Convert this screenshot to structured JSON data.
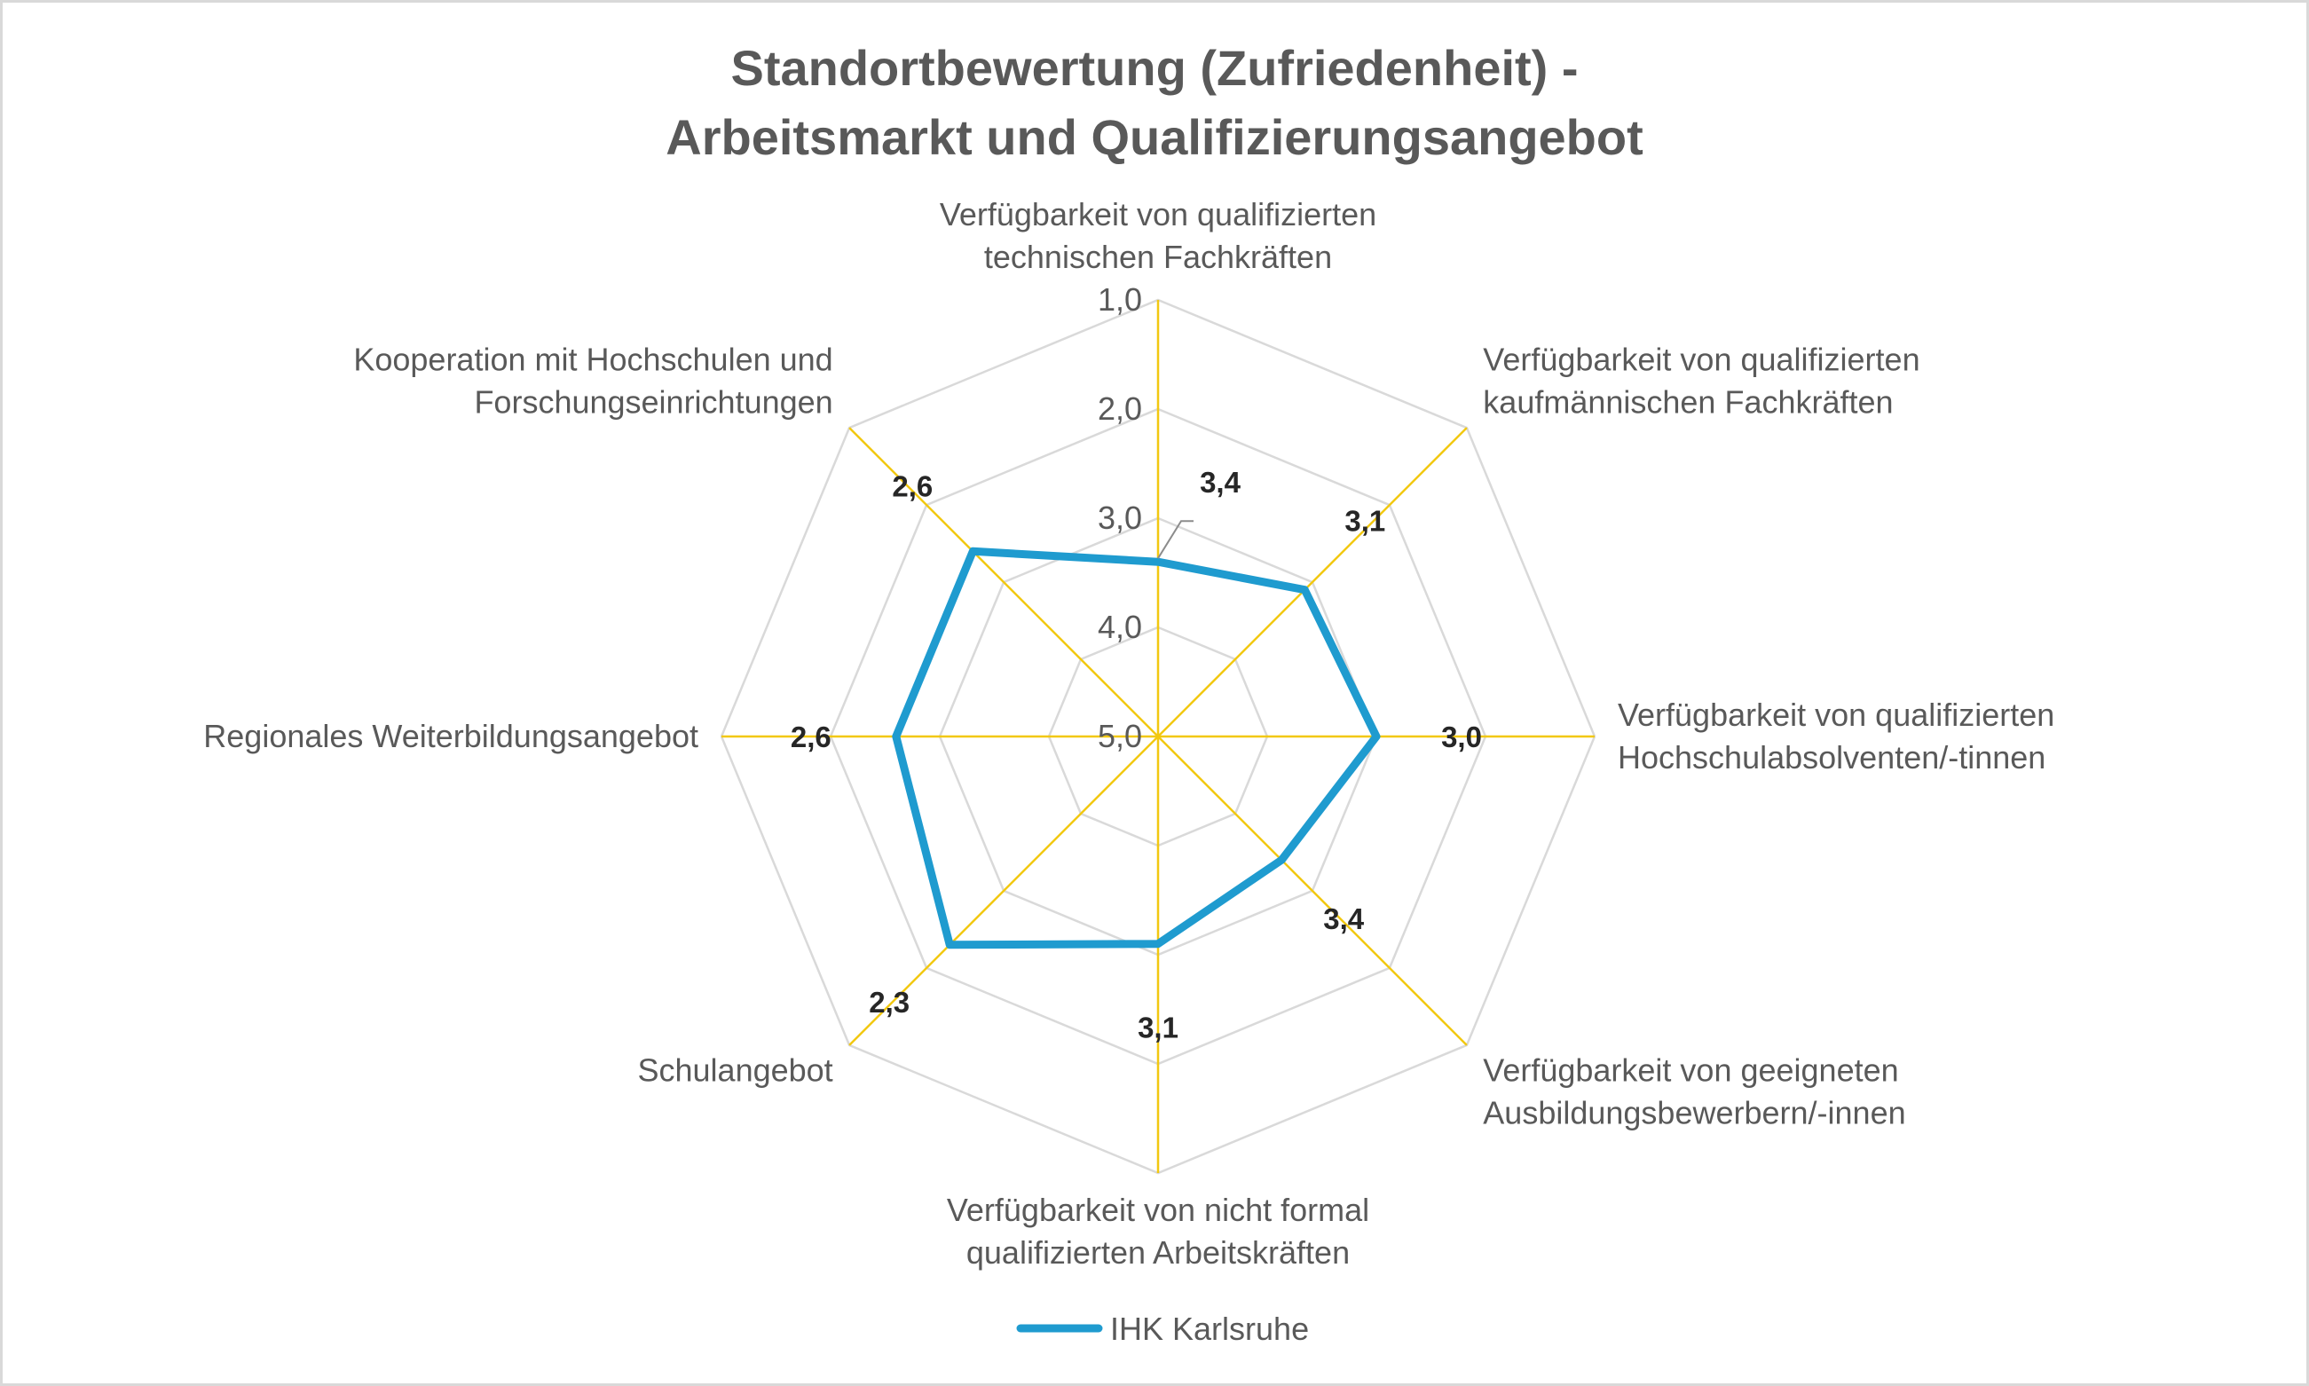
{
  "chart_data": {
    "type": "radar",
    "title": "Standortbewertung (Zufriedenheit) -",
    "subtitle": "Arbeitsmarkt und Qualifizierungsangebot",
    "categories": [
      [
        "Verfügbarkeit von qualifizierten",
        "technischen Fachkräften"
      ],
      [
        "Verfügbarkeit von qualifizierten",
        "kaufmännischen Fachkräften"
      ],
      [
        "Verfügbarkeit von qualifizierten",
        "Hochschulabsolventen/-tinnen"
      ],
      [
        "Verfügbarkeit von geeigneten",
        "Ausbildungsbewerbern/-innen"
      ],
      [
        "Verfügbarkeit von nicht formal",
        "qualifizierten Arbeitskräften"
      ],
      [
        "Schulangebot"
      ],
      [
        "Regionales Weiterbildungsangebot"
      ],
      [
        "Kooperation mit Hochschulen und",
        "Forschungseinrichtungen"
      ]
    ],
    "scale": {
      "min": 1,
      "max": 5,
      "reversed": true,
      "ticks": [
        "1,0",
        "2,0",
        "3,0",
        "4,0",
        "5,0"
      ]
    },
    "series": [
      {
        "name": "IHK Karlsruhe",
        "color": "#1f9bcf",
        "values": [
          3.4,
          3.1,
          3.0,
          3.4,
          3.1,
          2.3,
          2.6,
          2.6
        ],
        "labels": [
          "3,4",
          "3,1",
          "3,0",
          "3,4",
          "3,1",
          "2,3",
          "2,6",
          "2,6"
        ]
      }
    ],
    "grid": true,
    "grid_color": "#d9d9d9",
    "spoke_color": "#f2c811",
    "legend": {
      "position": "bottom"
    }
  }
}
